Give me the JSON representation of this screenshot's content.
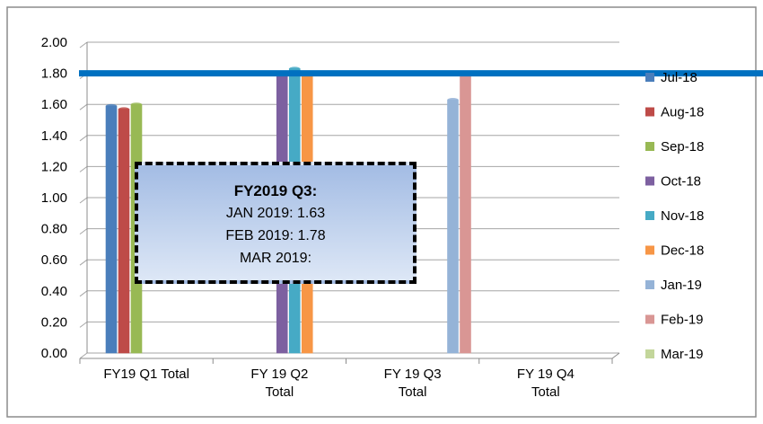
{
  "chart_data": {
    "type": "bar",
    "categories": [
      "FY19 Q1 Total",
      "FY 19 Q2\nTotal",
      "FY 19 Q3\nTotal",
      "FY 19 Q4\nTotal"
    ],
    "series": [
      {
        "name": "Jul-18",
        "color": "#4a7ebb",
        "values": [
          1.59,
          null,
          null,
          null
        ]
      },
      {
        "name": "Aug-18",
        "color": "#be4b48",
        "values": [
          1.57,
          null,
          null,
          null
        ]
      },
      {
        "name": "Sep-18",
        "color": "#98b954",
        "values": [
          1.6,
          null,
          null,
          null
        ]
      },
      {
        "name": "Oct-18",
        "color": "#7d60a0",
        "values": [
          null,
          1.79,
          null,
          null
        ]
      },
      {
        "name": "Nov-18",
        "color": "#46aac5",
        "values": [
          null,
          1.83,
          null,
          null
        ]
      },
      {
        "name": "Dec-18",
        "color": "#f79646",
        "values": [
          null,
          1.78,
          null,
          null
        ]
      },
      {
        "name": "Jan-19",
        "color": "#95b3d7",
        "values": [
          null,
          null,
          1.63,
          null
        ]
      },
      {
        "name": "Feb-19",
        "color": "#d99694",
        "values": [
          null,
          null,
          1.78,
          null
        ]
      },
      {
        "name": "Mar-19",
        "color": "#c3d69b",
        "values": [
          null,
          null,
          null,
          null
        ]
      }
    ],
    "ylim": [
      0,
      2
    ],
    "yticks": [
      {
        "value": 0,
        "label": "0.00"
      },
      {
        "value": 0.2,
        "label": "0.20"
      },
      {
        "value": 0.4,
        "label": "0.40"
      },
      {
        "value": 0.6,
        "label": "0.60"
      },
      {
        "value": 0.8,
        "label": "0.80"
      },
      {
        "value": 1,
        "label": "1.00"
      },
      {
        "value": 1.2,
        "label": "1.20"
      },
      {
        "value": 1.4,
        "label": "1.40"
      },
      {
        "value": 1.6,
        "label": "1.60"
      },
      {
        "value": 1.8,
        "label": "1.80"
      },
      {
        "value": 2,
        "label": "2.00"
      }
    ],
    "grid": true,
    "legend": "right",
    "reference_line": {
      "value": 1.8,
      "color": "#0070c0"
    },
    "annotation": {
      "title": "FY2019 Q3:",
      "lines": [
        "JAN 2019: 1.63",
        "FEB 2019: 1.78",
        "MAR 2019:"
      ]
    }
  }
}
